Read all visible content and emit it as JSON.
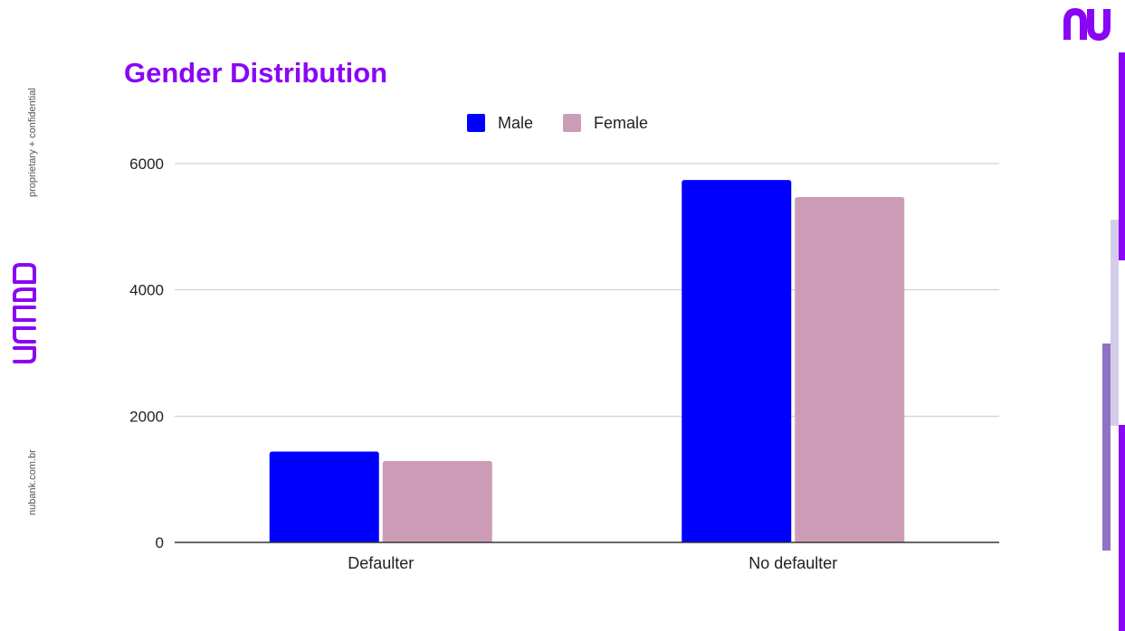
{
  "sidebar": {
    "top_text": "proprietary + confidential",
    "bottom_text": "nubank.com.br",
    "logo_icon": "nucard-logo-icon"
  },
  "header": {
    "logo_icon": "nu-logo-icon"
  },
  "colors": {
    "brand": "#8a05f5",
    "male": "#0000ff",
    "female": "#cc9cb6",
    "deco_light": "#d4cdea",
    "deco_mid": "#8e72c4"
  },
  "chart_data": {
    "type": "bar",
    "title": "Gender Distribution",
    "categories": [
      "Defaulter",
      "No defaulter"
    ],
    "series": [
      {
        "name": "Male",
        "values": [
          1440,
          5740
        ]
      },
      {
        "name": "Female",
        "values": [
          1290,
          5470
        ]
      }
    ],
    "ylim": [
      0,
      6000
    ],
    "yticks": [
      0,
      2000,
      4000,
      6000
    ],
    "grid": true,
    "legend": "top-center"
  }
}
